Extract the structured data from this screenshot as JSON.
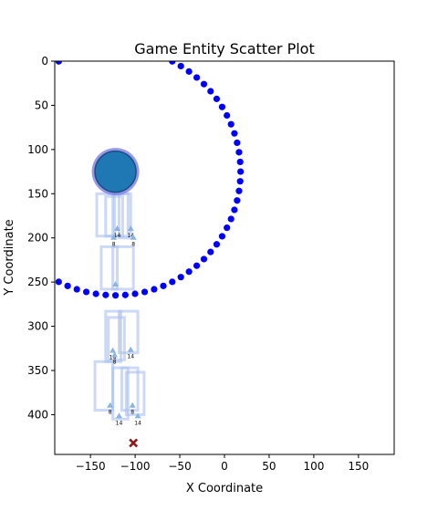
{
  "chart_data": {
    "type": "scatter",
    "title": "Game Entity Scatter Plot",
    "xlabel": "X Coordinate",
    "ylabel": "Y Coordinate",
    "xlim": [
      -190,
      190
    ],
    "ylim": [
      0,
      445
    ],
    "y_inverted": true,
    "xticks": [
      -150,
      -100,
      -50,
      0,
      50,
      100,
      150
    ],
    "yticks": [
      0,
      50,
      100,
      150,
      200,
      250,
      300,
      350,
      400
    ],
    "grid": false,
    "colors": {
      "ring": "#0000ff",
      "big_entity": "#1f77b4",
      "big_entity_edge": "#8080e6",
      "box": "#a8c0f0",
      "cross": "#8b1a1a",
      "triangle": "#8cb4e0"
    },
    "ring": {
      "center": [
        -122,
        125
      ],
      "radius": 140,
      "points": 80
    },
    "big_entity": {
      "x": -122,
      "y": 125
    },
    "boxes": [
      {
        "x": [
          -143,
          -123
        ],
        "y": [
          150,
          198
        ]
      },
      {
        "x": [
          -125,
          -108
        ],
        "y": [
          150,
          198
        ]
      },
      {
        "x": [
          -133,
          -114
        ],
        "y": [
          153,
          198
        ]
      },
      {
        "x": [
          -118,
          -105
        ],
        "y": [
          150,
          200
        ]
      },
      {
        "x": [
          -138,
          -120
        ],
        "y": [
          210,
          258
        ]
      },
      {
        "x": [
          -125,
          -102
        ],
        "y": [
          210,
          258
        ]
      },
      {
        "x": [
          -133,
          -116
        ],
        "y": [
          283,
          340
        ]
      },
      {
        "x": [
          -118,
          -97
        ],
        "y": [
          283,
          330
        ]
      },
      {
        "x": [
          -130,
          -112
        ],
        "y": [
          290,
          338
        ]
      },
      {
        "x": [
          -145,
          -125
        ],
        "y": [
          340,
          395
        ]
      },
      {
        "x": [
          -125,
          -108
        ],
        "y": [
          347,
          405
        ]
      },
      {
        "x": [
          -115,
          -97
        ],
        "y": [
          347,
          395
        ]
      },
      {
        "x": [
          -110,
          -90
        ],
        "y": [
          352,
          400
        ]
      }
    ],
    "triangles": [
      {
        "x": -120,
        "y": 190,
        "label": "14"
      },
      {
        "x": -124,
        "y": 200,
        "label": "8"
      },
      {
        "x": -105,
        "y": 190,
        "label": "14"
      },
      {
        "x": -102,
        "y": 200,
        "label": "8"
      },
      {
        "x": -122,
        "y": 253,
        "label": ""
      },
      {
        "x": -125,
        "y": 328,
        "label": "14"
      },
      {
        "x": -123,
        "y": 333,
        "label": "8"
      },
      {
        "x": -105,
        "y": 327,
        "label": "14"
      },
      {
        "x": -128,
        "y": 390,
        "label": "8"
      },
      {
        "x": -103,
        "y": 390,
        "label": "8"
      },
      {
        "x": -118,
        "y": 402,
        "label": "14"
      },
      {
        "x": -97,
        "y": 402,
        "label": "14"
      }
    ],
    "cross": {
      "x": -102,
      "y": 432
    }
  }
}
